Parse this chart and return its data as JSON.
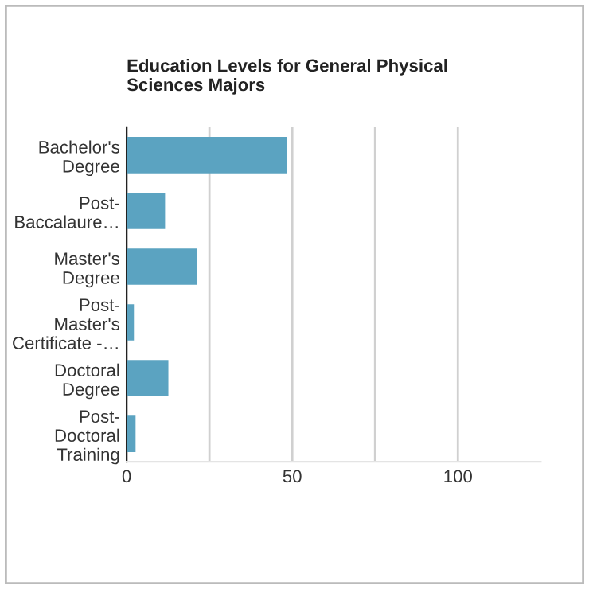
{
  "chart_data": {
    "type": "bar",
    "orientation": "horizontal",
    "title": "Education Levels for General Physical\nSciences Majors",
    "categories": [
      "Bachelor's\nDegree",
      "Post-\nBaccalaure…",
      "Master's\nDegree",
      "Post-\nMaster's\nCertificate -…",
      "Doctoral\nDegree",
      "Post-\nDoctoral\nTraining"
    ],
    "values": [
      48.4,
      11.6,
      21.3,
      2.2,
      12.6,
      2.7
    ],
    "color": "#5ba3c1",
    "xlim": [
      0,
      125
    ],
    "xticks": [
      0,
      {
        "value": 25,
        "label": null
      },
      50,
      {
        "value": 75,
        "label": null
      },
      100
    ],
    "grid": "x",
    "legend": false
  }
}
